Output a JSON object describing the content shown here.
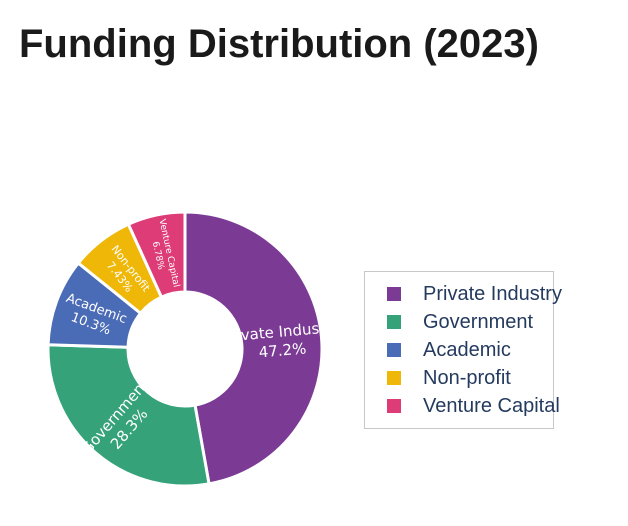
{
  "title": "Funding Distribution (2023)",
  "chart_data": {
    "type": "pie",
    "title": "Funding Distribution (2023)",
    "categories": [
      "Private Industry",
      "Government",
      "Academic",
      "Non-profit",
      "Venture Capital"
    ],
    "values": [
      47.2,
      28.3,
      10.3,
      7.43,
      6.78
    ],
    "value_labels": [
      "47.2%",
      "28.3%",
      "10.3%",
      "7.43%",
      "6.78%"
    ],
    "colors": [
      "#7b3b95",
      "#35a27a",
      "#4a6bb5",
      "#efb707",
      "#de3c76"
    ],
    "legend_position": "right"
  }
}
